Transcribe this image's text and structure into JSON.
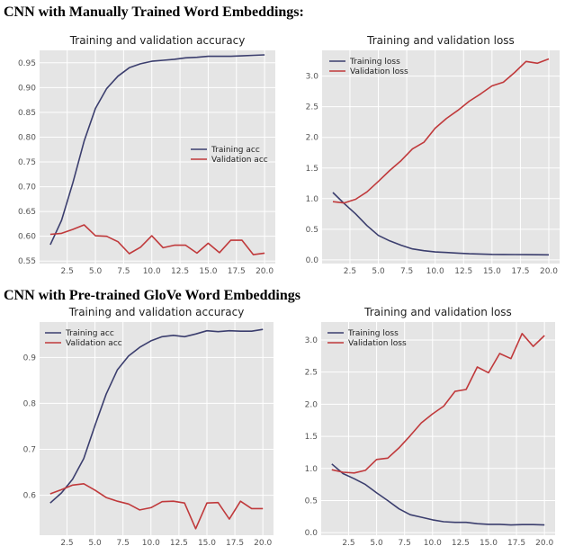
{
  "headings": {
    "top": "CNN with Manually Trained Word Embeddings:",
    "bottom": "CNN with Pre-trained GloVe Word Embeddings"
  },
  "colors": {
    "training": "#3b3e6e",
    "validation": "#c0393b",
    "plot_bg": "#e5e5e5",
    "grid": "#ffffff"
  },
  "chart_data": [
    {
      "type": "line",
      "title": "Training and validation accuracy",
      "xlabel": "",
      "ylabel": "",
      "xlim": [
        0.05,
        20.95
      ],
      "ylim": [
        0.545,
        0.975
      ],
      "xticks": [
        2.5,
        5.0,
        7.5,
        10.0,
        12.5,
        15.0,
        17.5,
        20.0
      ],
      "xtick_labels": [
        "2.5",
        "5.0",
        "7.5",
        "10.0",
        "12.5",
        "15.0",
        "17.5",
        "20.0"
      ],
      "yticks": [
        0.55,
        0.6,
        0.65,
        0.7,
        0.75,
        0.8,
        0.85,
        0.9,
        0.95
      ],
      "ytick_labels": [
        "0.55",
        "0.60",
        "0.65",
        "0.70",
        "0.75",
        "0.80",
        "0.85",
        "0.90",
        "0.95"
      ],
      "grid": true,
      "legend": "center-right",
      "x": [
        1,
        2,
        3,
        4,
        5,
        6,
        7,
        8,
        9,
        10,
        11,
        12,
        13,
        14,
        15,
        16,
        17,
        18,
        19,
        20
      ],
      "series": [
        {
          "name": "Training acc",
          "color": "training",
          "values": [
            0.583,
            0.632,
            0.708,
            0.792,
            0.858,
            0.898,
            0.923,
            0.94,
            0.948,
            0.953,
            0.955,
            0.957,
            0.96,
            0.961,
            0.963,
            0.963,
            0.963,
            0.964,
            0.965,
            0.966
          ]
        },
        {
          "name": "Validation acc",
          "color": "validation",
          "values": [
            0.604,
            0.606,
            0.614,
            0.623,
            0.601,
            0.6,
            0.589,
            0.565,
            0.578,
            0.601,
            0.577,
            0.582,
            0.582,
            0.566,
            0.586,
            0.567,
            0.592,
            0.592,
            0.563,
            0.566
          ]
        }
      ]
    },
    {
      "type": "line",
      "title": "Training and validation loss",
      "xlabel": "",
      "ylabel": "",
      "xlim": [
        0.05,
        20.95
      ],
      "ylim": [
        -0.06,
        3.42
      ],
      "xticks": [
        2.5,
        5.0,
        7.5,
        10.0,
        12.5,
        15.0,
        17.5,
        20.0
      ],
      "xtick_labels": [
        "2.5",
        "5.0",
        "7.5",
        "10.0",
        "12.5",
        "15.0",
        "17.5",
        "20.0"
      ],
      "yticks": [
        0.0,
        0.5,
        1.0,
        1.5,
        2.0,
        2.5,
        3.0
      ],
      "ytick_labels": [
        "0.0",
        "0.5",
        "1.0",
        "1.5",
        "2.0",
        "2.5",
        "3.0"
      ],
      "grid": true,
      "legend": "upper-left",
      "x": [
        1,
        2,
        3,
        4,
        5,
        6,
        7,
        8,
        9,
        10,
        11,
        12,
        13,
        14,
        15,
        16,
        17,
        18,
        19,
        20
      ],
      "series": [
        {
          "name": "Training loss",
          "color": "training",
          "values": [
            1.1,
            0.92,
            0.75,
            0.56,
            0.4,
            0.31,
            0.24,
            0.18,
            0.15,
            0.13,
            0.12,
            0.11,
            0.1,
            0.095,
            0.09,
            0.088,
            0.087,
            0.085,
            0.084,
            0.083
          ]
        },
        {
          "name": "Validation loss",
          "color": "validation",
          "values": [
            0.95,
            0.93,
            0.99,
            1.11,
            1.28,
            1.46,
            1.62,
            1.81,
            1.92,
            2.15,
            2.31,
            2.44,
            2.59,
            2.71,
            2.84,
            2.9,
            3.06,
            3.24,
            3.21,
            3.28
          ]
        }
      ]
    },
    {
      "type": "line",
      "title": "Training and validation accuracy",
      "xlabel": "",
      "ylabel": "",
      "xlim": [
        0.05,
        20.95
      ],
      "ylim": [
        0.513,
        0.977
      ],
      "xticks": [
        2.5,
        5.0,
        7.5,
        10.0,
        12.5,
        15.0,
        17.5,
        20.0
      ],
      "xtick_labels": [
        "2.5",
        "5.0",
        "7.5",
        "10.0",
        "12.5",
        "15.0",
        "17.5",
        "20.0"
      ],
      "yticks": [
        0.6,
        0.7,
        0.8,
        0.9
      ],
      "ytick_labels": [
        "0.6",
        "0.7",
        "0.8",
        "0.9"
      ],
      "grid": true,
      "legend": "upper-left",
      "x": [
        1,
        2,
        3,
        4,
        5,
        6,
        7,
        8,
        9,
        10,
        11,
        12,
        13,
        14,
        15,
        16,
        17,
        18,
        19,
        20
      ],
      "series": [
        {
          "name": "Training acc",
          "color": "training",
          "values": [
            0.583,
            0.605,
            0.635,
            0.68,
            0.752,
            0.82,
            0.873,
            0.903,
            0.922,
            0.936,
            0.945,
            0.948,
            0.945,
            0.951,
            0.958,
            0.956,
            0.958,
            0.957,
            0.957,
            0.961
          ]
        },
        {
          "name": "Validation acc",
          "color": "validation",
          "values": [
            0.603,
            0.612,
            0.622,
            0.625,
            0.611,
            0.595,
            0.587,
            0.581,
            0.568,
            0.573,
            0.586,
            0.587,
            0.583,
            0.527,
            0.583,
            0.584,
            0.548,
            0.587,
            0.571,
            0.571
          ]
        }
      ]
    },
    {
      "type": "line",
      "title": "Training and validation loss",
      "xlabel": "",
      "ylabel": "",
      "xlim": [
        0.05,
        20.95
      ],
      "ylim": [
        -0.04,
        3.28
      ],
      "xticks": [
        2.5,
        5.0,
        7.5,
        10.0,
        12.5,
        15.0,
        17.5,
        20.0
      ],
      "xtick_labels": [
        "2.5",
        "5.0",
        "7.5",
        "10.0",
        "12.5",
        "15.0",
        "17.5",
        "20.0"
      ],
      "yticks": [
        0.0,
        0.5,
        1.0,
        1.5,
        2.0,
        2.5,
        3.0
      ],
      "ytick_labels": [
        "0.0",
        "0.5",
        "1.0",
        "1.5",
        "2.0",
        "2.5",
        "3.0"
      ],
      "grid": true,
      "legend": "upper-left",
      "x": [
        1,
        2,
        3,
        4,
        5,
        6,
        7,
        8,
        9,
        10,
        11,
        12,
        13,
        14,
        15,
        16,
        17,
        18,
        19,
        20
      ],
      "series": [
        {
          "name": "Training loss",
          "color": "training",
          "values": [
            1.07,
            0.92,
            0.84,
            0.75,
            0.62,
            0.5,
            0.37,
            0.28,
            0.24,
            0.2,
            0.17,
            0.16,
            0.16,
            0.14,
            0.13,
            0.13,
            0.12,
            0.125,
            0.125,
            0.12
          ]
        },
        {
          "name": "Validation loss",
          "color": "validation",
          "values": [
            0.98,
            0.94,
            0.93,
            0.97,
            1.14,
            1.16,
            1.32,
            1.51,
            1.71,
            1.85,
            1.97,
            2.2,
            2.23,
            2.58,
            2.49,
            2.79,
            2.71,
            3.1,
            2.9,
            3.07
          ]
        }
      ]
    }
  ]
}
